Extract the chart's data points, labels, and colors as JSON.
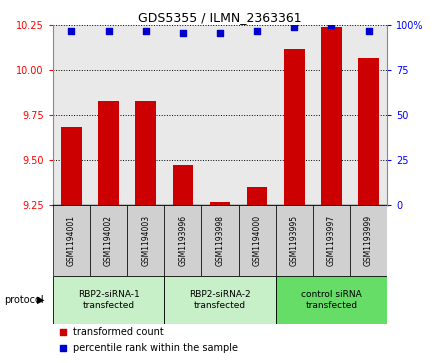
{
  "title": "GDS5355 / ILMN_2363361",
  "samples": [
    "GSM1194001",
    "GSM1194002",
    "GSM1194003",
    "GSM1193996",
    "GSM1193998",
    "GSM1194000",
    "GSM1193995",
    "GSM1193997",
    "GSM1193999"
  ],
  "red_values": [
    9.68,
    9.83,
    9.83,
    9.47,
    9.265,
    9.35,
    10.12,
    10.24,
    10.07
  ],
  "blue_values": [
    97,
    97,
    97,
    96,
    95.5,
    97,
    99,
    100,
    97
  ],
  "ylim_left": [
    9.25,
    10.25
  ],
  "ylim_right": [
    0,
    100
  ],
  "yticks_left": [
    9.25,
    9.5,
    9.75,
    10.0,
    10.25
  ],
  "yticks_right": [
    0,
    25,
    50,
    75,
    100
  ],
  "groups": [
    {
      "label": "RBP2-siRNA-1\ntransfected",
      "start": 0,
      "end": 3,
      "color": "#c8f0c8"
    },
    {
      "label": "RBP2-siRNA-2\ntransfected",
      "start": 3,
      "end": 6,
      "color": "#c8f0c8"
    },
    {
      "label": "control siRNA\ntransfected",
      "start": 6,
      "end": 9,
      "color": "#66dd66"
    }
  ],
  "bar_color": "#cc0000",
  "square_color": "#0000cc",
  "cell_color": "#d0d0d0",
  "plot_bg": "#ffffff",
  "legend_red": "transformed count",
  "legend_blue": "percentile rank within the sample",
  "protocol_label": "protocol"
}
